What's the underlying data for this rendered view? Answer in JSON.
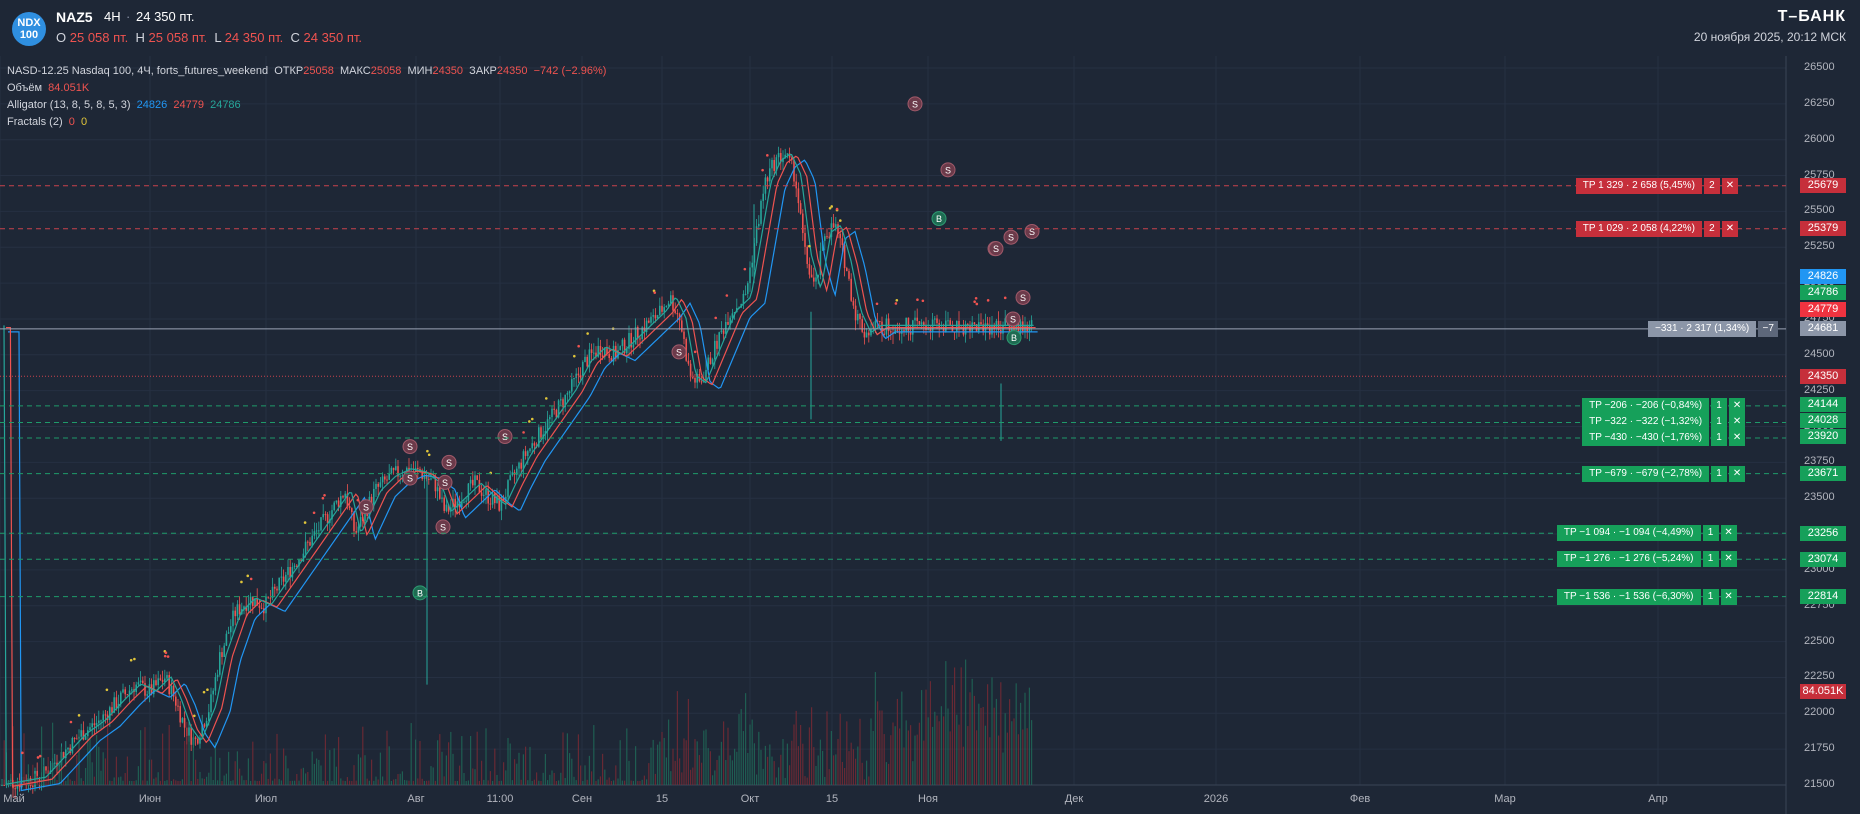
{
  "header": {
    "badge_line1": "NDX",
    "badge_line2": "100",
    "symbol": "NAZ5",
    "interval": "4H",
    "separator": "·",
    "last_price": "24 350 пт.",
    "ohlc": {
      "o_label": "O",
      "o_value": "25 058 пт.",
      "h_label": "H",
      "h_value": "25 058 пт.",
      "l_label": "L",
      "l_value": "24 350 пт.",
      "c_label": "C",
      "c_value": "24 350 пт."
    },
    "brand": "Т–БАНК",
    "datetime": "20 ноября 2025, 20:12 МСК"
  },
  "legend": {
    "instrument": "NASD-12.25 Nasdaq 100, 4Ч, forts_futures_weekend",
    "open_label": "ОТКР",
    "open_value": "25058",
    "max_label": "МАКС",
    "max_value": "25058",
    "min_label": "МИН",
    "min_value": "24350",
    "close_label": "ЗАКР",
    "close_value": "24350",
    "change": "−742 (−2.96%)",
    "volume_label": "Объём",
    "volume_value": "84.051K",
    "alligator_label": "Alligator (13, 8, 5, 8, 5, 3)",
    "alligator_v1": "24826",
    "alligator_v2": "24779",
    "alligator_v3": "24786",
    "fractals_label": "Fractals (2)",
    "fractals_v1": "0",
    "fractals_v2": "0"
  },
  "colors": {
    "background": "#1e2736",
    "up": "#26a69a",
    "down": "#ef5350",
    "take_profit_red": "#c62f3b",
    "take_profit_green": "#16a05a",
    "position_gray": "#8c96a8",
    "jaw": "#2196f3",
    "teeth": "#ef5350",
    "lips": "#26a69a"
  },
  "price_axis_ticks": [
    "26500",
    "26250",
    "26000",
    "25750",
    "25500",
    "25250",
    "25000",
    "24750",
    "24500",
    "24250",
    "24000",
    "23750",
    "23500",
    "23250",
    "23000",
    "22750",
    "22500",
    "22250",
    "22000",
    "21750",
    "21500"
  ],
  "time_axis_labels": [
    "Май",
    "Июн",
    "Июл",
    "Авг",
    "11:00",
    "Сен",
    "15",
    "Окт",
    "15",
    "Ноя",
    "Дек",
    "2026",
    "Фев",
    "Мар",
    "Апр"
  ],
  "price_tags": {
    "tp1": "25679",
    "tp2": "25379",
    "jaw": "24826",
    "lips": "24786",
    "teeth": "24779",
    "position": "24681",
    "last": "24350",
    "g1": "24144",
    "g2": "24028",
    "g3": "23920",
    "g4": "23671",
    "g5": "23256",
    "g6": "23074",
    "g7": "22814",
    "volume": "84.051K"
  },
  "orders": [
    {
      "text": "TP 1 329 · 2 658 (5,45%)",
      "count": "2",
      "price": 25679,
      "side": "red"
    },
    {
      "text": "TP 1 029 · 2 058 (4,22%)",
      "count": "2",
      "price": 25379,
      "side": "red"
    },
    {
      "text": "TP −206 · −206 (−0,84%)",
      "count": "1",
      "price": 24144,
      "side": "green"
    },
    {
      "text": "TP −322 · −322 (−1,32%)",
      "count": "1",
      "price": 24028,
      "side": "green"
    },
    {
      "text": "TP −430 · −430 (−1,76%)",
      "count": "1",
      "price": 23920,
      "side": "green"
    },
    {
      "text": "TP −679 · −679 (−2,78%)",
      "count": "1",
      "price": 23671,
      "side": "green"
    },
    {
      "text": "TP −1 094 · −1 094 (−4,49%)",
      "count": "1",
      "price": 23256,
      "side": "green"
    },
    {
      "text": "TP −1 276 · −1 276 (−5,24%)",
      "count": "1",
      "price": 23074,
      "side": "green"
    },
    {
      "text": "TP −1 536 · −1 536 (−6,30%)",
      "count": "1",
      "price": 22814,
      "side": "green"
    }
  ],
  "position": {
    "text": "−331 · 2 317 (1,34%)",
    "count": "−7",
    "price": 24681
  },
  "close_glyph": "✕",
  "chart_data": {
    "type": "candlestick",
    "price_range": [
      21500,
      26500
    ],
    "series_points": [
      [
        0,
        21500
      ],
      [
        40,
        21550
      ],
      [
        60,
        21700
      ],
      [
        80,
        21850
      ],
      [
        100,
        21950
      ],
      [
        120,
        22100
      ],
      [
        135,
        22200
      ],
      [
        150,
        22150
      ],
      [
        165,
        22250
      ],
      [
        175,
        22100
      ],
      [
        185,
        21900
      ],
      [
        195,
        21800
      ],
      [
        210,
        22050
      ],
      [
        220,
        22400
      ],
      [
        235,
        22700
      ],
      [
        250,
        22800
      ],
      [
        265,
        22750
      ],
      [
        280,
        22900
      ],
      [
        295,
        23050
      ],
      [
        305,
        23150
      ],
      [
        320,
        23300
      ],
      [
        335,
        23450
      ],
      [
        345,
        23550
      ],
      [
        355,
        23250
      ],
      [
        365,
        23400
      ],
      [
        375,
        23550
      ],
      [
        390,
        23650
      ],
      [
        405,
        23700
      ],
      [
        420,
        23680
      ],
      [
        435,
        23600
      ],
      [
        445,
        23400
      ],
      [
        460,
        23500
      ],
      [
        475,
        23600
      ],
      [
        490,
        23500
      ],
      [
        500,
        23450
      ],
      [
        510,
        23600
      ],
      [
        525,
        23800
      ],
      [
        540,
        23950
      ],
      [
        555,
        24100
      ],
      [
        570,
        24250
      ],
      [
        585,
        24450
      ],
      [
        600,
        24550
      ],
      [
        615,
        24500
      ],
      [
        630,
        24600
      ],
      [
        645,
        24700
      ],
      [
        660,
        24800
      ],
      [
        670,
        24900
      ],
      [
        680,
        24750
      ],
      [
        690,
        24350
      ],
      [
        700,
        24300
      ],
      [
        715,
        24550
      ],
      [
        730,
        24800
      ],
      [
        745,
        24900
      ],
      [
        755,
        25300
      ],
      [
        765,
        25700
      ],
      [
        775,
        25850
      ],
      [
        785,
        25900
      ],
      [
        795,
        25750
      ],
      [
        805,
        25200
      ],
      [
        815,
        24950
      ],
      [
        825,
        25350
      ],
      [
        835,
        25400
      ],
      [
        845,
        25150
      ],
      [
        855,
        24800
      ],
      [
        865,
        24650
      ],
      [
        875,
        24700
      ]
    ],
    "volume_label": "Объём",
    "volume_last": "84.051K"
  }
}
